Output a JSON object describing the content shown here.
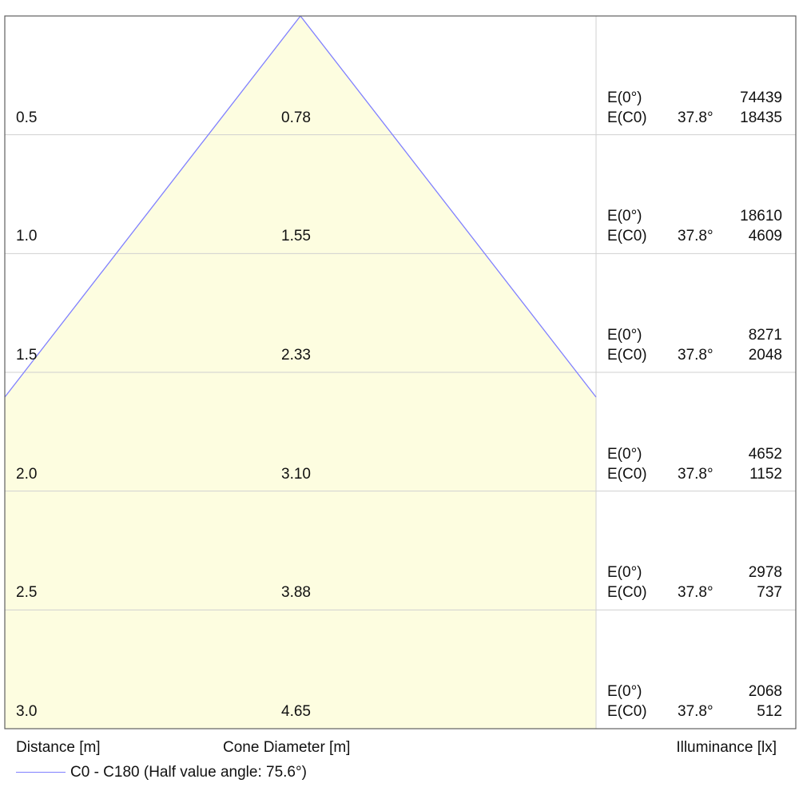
{
  "chart_data": {
    "type": "table",
    "rows": [
      {
        "distance": "0.5",
        "cone_diameter": "0.78",
        "e0_label": "E(0°)",
        "e0_value": "74439",
        "ec0_label": "E(C0)",
        "ec0_angle": "37.8°",
        "ec0_value": "18435"
      },
      {
        "distance": "1.0",
        "cone_diameter": "1.55",
        "e0_label": "E(0°)",
        "e0_value": "18610",
        "ec0_label": "E(C0)",
        "ec0_angle": "37.8°",
        "ec0_value": "4609"
      },
      {
        "distance": "1.5",
        "cone_diameter": "2.33",
        "e0_label": "E(0°)",
        "e0_value": "8271",
        "ec0_label": "E(C0)",
        "ec0_angle": "37.8°",
        "ec0_value": "2048"
      },
      {
        "distance": "2.0",
        "cone_diameter": "3.10",
        "e0_label": "E(0°)",
        "e0_value": "4652",
        "ec0_label": "E(C0)",
        "ec0_angle": "37.8°",
        "ec0_value": "1152"
      },
      {
        "distance": "2.5",
        "cone_diameter": "3.88",
        "e0_label": "E(0°)",
        "e0_value": "2978",
        "ec0_label": "E(C0)",
        "ec0_angle": "37.8°",
        "ec0_value": "737"
      },
      {
        "distance": "3.0",
        "cone_diameter": "4.65",
        "e0_label": "E(0°)",
        "e0_value": "2068",
        "ec0_label": "E(C0)",
        "ec0_angle": "37.8°",
        "ec0_value": "512"
      }
    ],
    "half_value_angle_deg": 75.6,
    "cone_fill_color": "#fdfde0",
    "cone_line_color": "#8080ff",
    "grid_color": "#d0d0d0",
    "xlabel_distance": "Distance [m]",
    "xlabel_cone": "Cone Diameter [m]",
    "xlabel_illuminance": "Illuminance [lx]",
    "legend": "C0 - C180 (Half value angle: 75.6°)"
  }
}
